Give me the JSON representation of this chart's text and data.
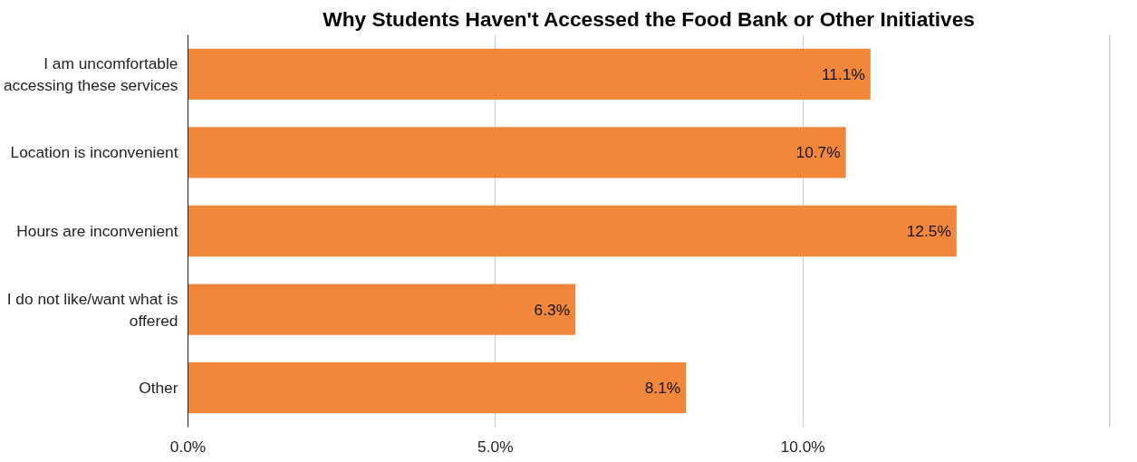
{
  "chart_data": {
    "type": "bar",
    "orientation": "horizontal",
    "title": "Why Students Haven't Accessed the Food Bank or Other Initiatives",
    "categories": [
      "I am uncomfortable accessing these services",
      "Location is inconvenient",
      "Hours are inconvenient",
      "I do not like/want what is offered",
      "Other"
    ],
    "values": [
      11.1,
      10.7,
      12.5,
      6.3,
      8.1
    ],
    "value_labels": [
      "11.1%",
      "10.7%",
      "12.5%",
      "6.3%",
      "8.1%"
    ],
    "color": "#f0873a",
    "xlim": [
      0,
      15
    ],
    "xticks": [
      {
        "value": 0,
        "label": "0.0%"
      },
      {
        "value": 5,
        "label": "5.0%"
      },
      {
        "value": 10,
        "label": "10.0%"
      },
      {
        "value": 15,
        "label": null
      }
    ],
    "grid": "x"
  }
}
